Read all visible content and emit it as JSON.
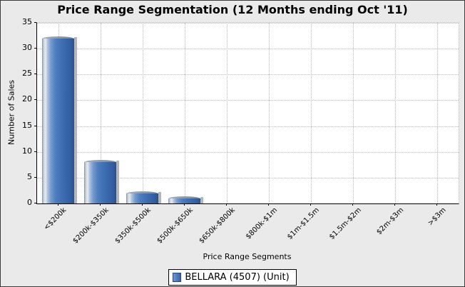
{
  "chart_data": {
    "type": "bar",
    "title": "Price Range Segmentation (12 Months ending Oct '11)",
    "categories": [
      "<$200k",
      "$200k-$350k",
      "$350k-$500k",
      "$500k-$650k",
      "$650k-$800k",
      "$800k-$1m",
      "$1m-$1.5m",
      "$1.5m-$2m",
      "$2m-$3m",
      ">$3m"
    ],
    "values": [
      32,
      8,
      2,
      1,
      0,
      0,
      0,
      0,
      0,
      0
    ],
    "xlabel": "Price Range Segments",
    "ylabel": "Number of Sales",
    "ylim": [
      0,
      35
    ],
    "ytick_step": 5,
    "grid": true,
    "legend": {
      "position": "bottom-center",
      "entries": [
        {
          "label": "BELLARA (4507) (Unit)",
          "swatch_color": "#4a7cc2"
        }
      ]
    },
    "colors": {
      "bar": "#4a7cc2",
      "bar_highlight": "#ffffff",
      "bar_shadow": "#9aa0a7",
      "gridline": "#b8b8b8",
      "axis": "#000000",
      "plot_background": "#ffffff",
      "desktop_stipple": "#ababab"
    }
  }
}
